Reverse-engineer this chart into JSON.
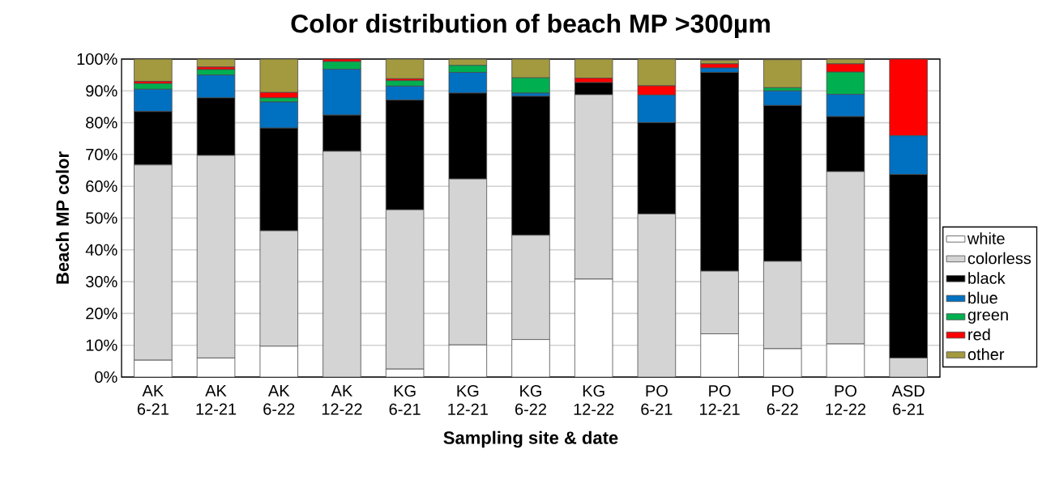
{
  "chart_data": {
    "type": "bar",
    "stacked": true,
    "title": "Color distribution of beach MP >300µm",
    "xlabel": "Sampling site & date",
    "ylabel": "Beach MP color",
    "categories": [
      "AK 6-21",
      "AK 12-21",
      "AK 6-22",
      "AK 12-22",
      "KG 6-21",
      "KG 12-21",
      "KG 6-22",
      "KG 12-22",
      "PO 6-21",
      "PO 12-21",
      "PO 6-22",
      "PO 12-22",
      "ASD 6-21"
    ],
    "ylim": [
      0,
      100
    ],
    "yticks": [
      {
        "value": 0,
        "label": "0%"
      },
      {
        "value": 10,
        "label": "10%"
      },
      {
        "value": 20,
        "label": "20%"
      },
      {
        "value": 30,
        "label": "30%"
      },
      {
        "value": 40,
        "label": "40%"
      },
      {
        "value": 50,
        "label": "50%"
      },
      {
        "value": 60,
        "label": "60%"
      },
      {
        "value": 70,
        "label": "70%"
      },
      {
        "value": 80,
        "label": "80%"
      },
      {
        "value": 90,
        "label": "90%"
      },
      {
        "value": 100,
        "label": "100%"
      }
    ],
    "grid": "y",
    "legend": "right",
    "series": [
      {
        "name": "white",
        "color": "#ffffff",
        "values": [
          5.3,
          6,
          9.7,
          0,
          2.5,
          10.1,
          11.8,
          30.8,
          0,
          13.6,
          8.9,
          10.4,
          0
        ]
      },
      {
        "name": "colorless",
        "color": "#d4d4d4",
        "values": [
          61.4,
          63.7,
          36.3,
          71,
          50.1,
          52.2,
          32.8,
          58,
          51.3,
          19.7,
          27.5,
          54.2,
          6
        ]
      },
      {
        "name": "black",
        "color": "#000000",
        "values": [
          16.8,
          18.1,
          32.3,
          11.4,
          34.5,
          27,
          43.7,
          3.8,
          28.7,
          62.5,
          49,
          17.3,
          57.7
        ]
      },
      {
        "name": "blue",
        "color": "#0070c0",
        "values": [
          7,
          7.2,
          8.2,
          14.4,
          4.4,
          6.5,
          1,
          0,
          8.7,
          1.4,
          4.6,
          7,
          12.2
        ]
      },
      {
        "name": "green",
        "color": "#00b050",
        "values": [
          1.8,
          1.7,
          1.3,
          2.4,
          1.7,
          2.2,
          4.8,
          0,
          0,
          null,
          1,
          7,
          0
        ]
      },
      {
        "name": "red",
        "color": "#ff0000",
        "values": [
          0.7,
          0.8,
          1.7,
          0.8,
          0.6,
          0,
          0,
          1.4,
          2.9,
          1.3,
          null,
          2.6,
          24.1
        ]
      },
      {
        "name": "other",
        "color": "#a39a40",
        "values": [
          7,
          2.5,
          10.5,
          0,
          6.2,
          2,
          5.9,
          6,
          8.4,
          1.1,
          8.8,
          1.5,
          0
        ]
      }
    ]
  }
}
